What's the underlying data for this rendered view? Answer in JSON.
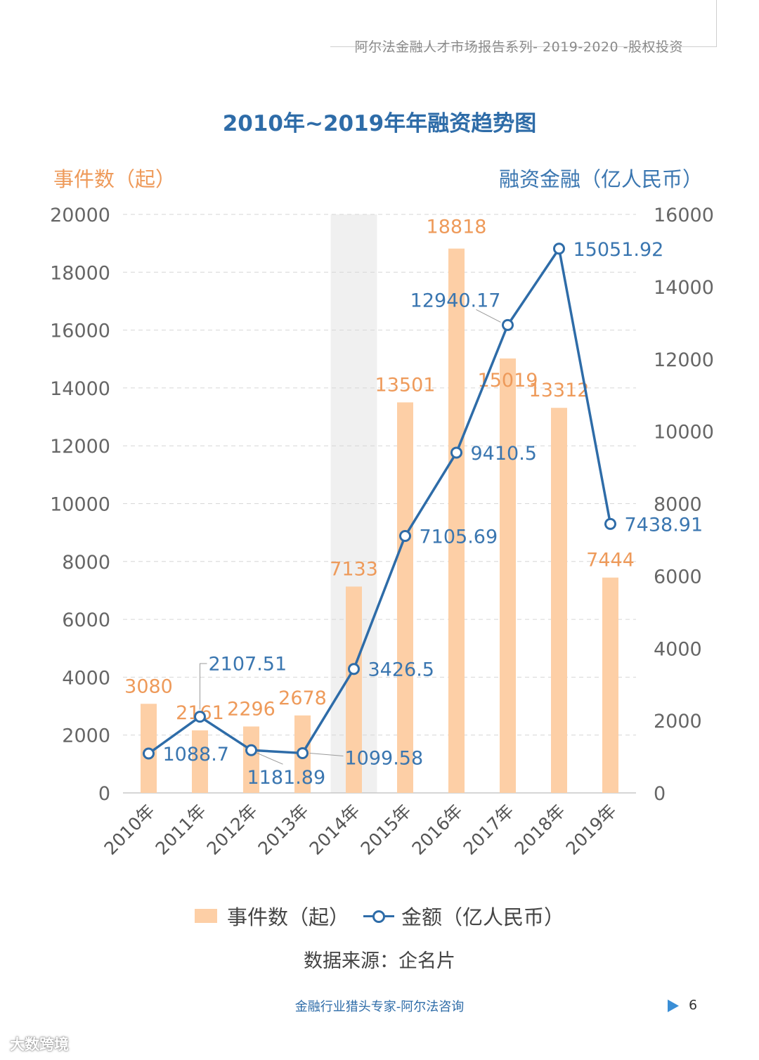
{
  "header": {
    "text": "阿尔法金融人才市场报告系列- 2019-2020 -股权投资"
  },
  "chart_data": {
    "type": "bar",
    "title": "2010年~2019年年融资趋势图",
    "left_axis_label": "事件数（起）",
    "right_axis_label": "融资金融（亿人民币）",
    "categories": [
      "2010年",
      "2011年",
      "2012年",
      "2013年",
      "2014年",
      "2015年",
      "2016年",
      "2017年",
      "2018年",
      "2019年"
    ],
    "left_ylim": [
      0,
      20000
    ],
    "right_ylim": [
      0,
      16000
    ],
    "left_ticks": [
      0,
      2000,
      4000,
      6000,
      8000,
      10000,
      12000,
      14000,
      16000,
      18000,
      20000
    ],
    "right_ticks": [
      0,
      2000,
      4000,
      6000,
      8000,
      10000,
      12000,
      14000,
      16000
    ],
    "grid": true,
    "highlight_category": "2014年",
    "series": [
      {
        "name": "事件数（起）",
        "type": "bar",
        "axis": "left",
        "color": "#fdcfa6",
        "label_color": "#ee9a5a",
        "values": [
          3080,
          2161,
          2296,
          2678,
          7133,
          13501,
          18818,
          15019,
          13312,
          7444
        ],
        "labels": [
          "3080",
          "2161",
          "2296",
          "2678",
          "7133",
          "13501",
          "18818",
          "15019",
          "13312",
          "7444"
        ]
      },
      {
        "name": "金额（亿人民币）",
        "type": "line",
        "axis": "right",
        "color": "#2e6ca8",
        "values": [
          1088.7,
          2107.51,
          1181.89,
          1099.58,
          3426.5,
          7105.69,
          9410.5,
          12940.17,
          15051.92,
          7438.91
        ],
        "labels": [
          "1088.7",
          "2107.51",
          "1181.89",
          "1099.58",
          "3426.5",
          "7105.69",
          "9410.5",
          "12940.17",
          "15051.92",
          "7438.91"
        ]
      }
    ]
  },
  "legend": {
    "bar_label": "事件数（起）",
    "line_label": "金额（亿人民币）"
  },
  "source": "数据来源：企名片",
  "footer": {
    "text": "金融行业猎头专家-阿尔法咨询",
    "page": "6"
  },
  "brand": "大数跨境"
}
